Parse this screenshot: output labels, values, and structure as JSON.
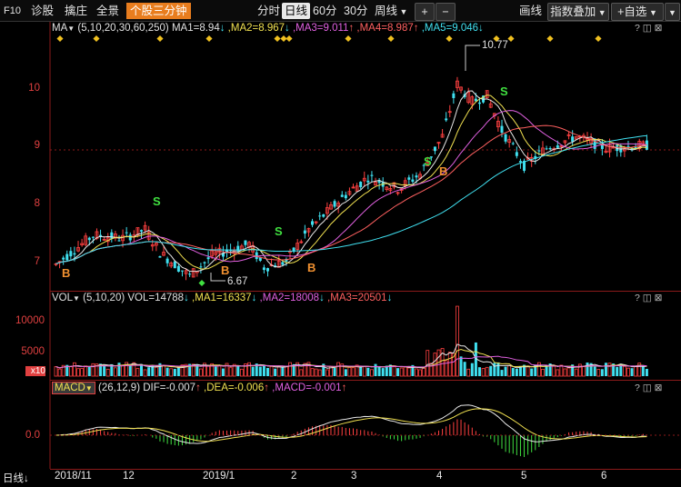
{
  "toolbar": {
    "f10": "F10",
    "items": [
      "诊股",
      "擒庄",
      "全景"
    ],
    "active_mode": "个股三分钟",
    "periods": [
      "分时",
      "日线",
      "60分",
      "30分"
    ],
    "selected_period": "日线",
    "period_dropdown": "周线",
    "plus": "+",
    "minus": "−",
    "draw": "画线",
    "index_overlay": "指数叠加",
    "add_watch": "+自选"
  },
  "main_panel": {
    "indicator": "MA",
    "params": "(5,10,20,30,60,250)",
    "ma1": "MA1=8.94",
    "ma2": ",MA2=8.967",
    "ma3": ",MA3=9.011",
    "ma4": ",MA4=8.987",
    "ma5": ",MA5=9.046",
    "y_ticks": [
      "10",
      "9",
      "8",
      "7"
    ],
    "high_label": "10.77",
    "low_label": "6.67",
    "signals": [
      {
        "t": "S"
      },
      {
        "t": "B"
      },
      {
        "t": "B"
      },
      {
        "t": "S"
      },
      {
        "t": "B"
      },
      {
        "t": "S"
      },
      {
        "t": "B"
      },
      {
        "t": "S"
      }
    ]
  },
  "vol_panel": {
    "indicator": "VOL",
    "params": "(5,10,20)",
    "vol": "VOL=14788",
    "ma1": ",MA1=16337",
    "ma2": ",MA2=18008",
    "ma3": ",MA3=20501",
    "y_ticks": [
      "10000",
      "5000"
    ],
    "unit": "x10"
  },
  "macd_panel": {
    "indicator": "MACD",
    "params": "(26,12,9)",
    "dif": "DIF=-0.007",
    "dea": ",DEA=-0.006",
    "macd": ",MACD=-0.001",
    "y_tick": "0.0"
  },
  "date_axis": {
    "period": "日线",
    "labels": [
      "2018/11",
      "12",
      "2019/1",
      "2",
      "3",
      "4",
      "5",
      "6"
    ]
  },
  "panel_icons": [
    "?",
    "◫",
    "⊠"
  ],
  "colors": {
    "up": "#ff4040",
    "down": "#40e0f0",
    "ma1": "#e8e8e8",
    "ma2": "#f0e050",
    "ma3": "#e060e0",
    "ma4": "#ff6060",
    "ma5": "#40e0f0"
  }
}
